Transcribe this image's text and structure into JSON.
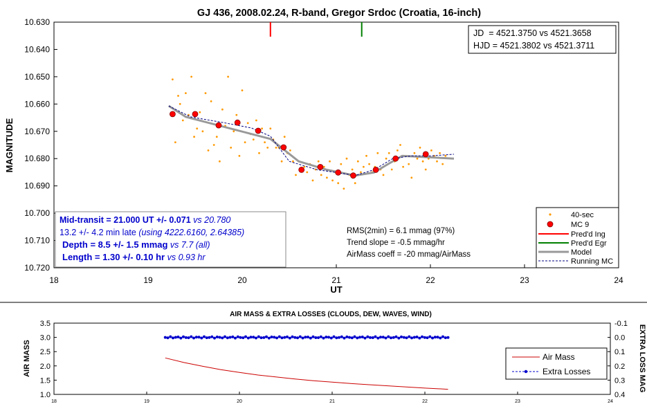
{
  "top_chart": {
    "title": "GJ 436, 2008.02.24, R-band, Gregor Srdoc (Croatia, 16-inch)",
    "ylabel": "MAGNITUDE",
    "xlabel": "UT",
    "jd_line": "JD  = 4521.3750 vs 4521.3658",
    "hjd_line": "HJD = 4521.3802 vs 4521.3711",
    "info": {
      "mid_bold": "Mid-transit = 21.000 UT +/- 0.071",
      "mid_vs": " vs 20.780",
      "late": "13.2 +/- 4.2 min late ",
      "late_italic": "(using 4222.6160, 2.64385)",
      "depth_bold": "Depth = 8.5 +/- 1.5 mmag",
      "depth_vs": " vs 7.7 (all)",
      "length_bold": "Length = 1.30 +/- 0.10 hr",
      "length_vs": " vs 0.93 hr"
    },
    "stats": {
      "rms": "RMS(2min) = 6.1 mmag (97%)",
      "trend": "Trend slope = -0.5 mmag/hr",
      "airmass": "AirMass coeff = -20 mmag/AirMass"
    },
    "legend": [
      "40-sec",
      "MC 9",
      "Pred'd Ing",
      "Pred'd Egr",
      "Model",
      "Running MC"
    ],
    "x_ticks": [
      "18",
      "19",
      "20",
      "21",
      "22",
      "23",
      "24"
    ],
    "y_ticks": [
      "10.630",
      "10.640",
      "10.650",
      "10.660",
      "10.670",
      "10.680",
      "10.690",
      "10.700",
      "10.710",
      "10.720"
    ]
  },
  "bottom_chart": {
    "title": "AIR MASS & EXTRA LOSSES (CLOUDS, DEW, WAVES, WIND)",
    "ylabel_left": "AIR MASS",
    "ylabel_right": "EXTRA LOSS MAG",
    "x_ticks": [
      "18",
      "19",
      "20",
      "21",
      "22",
      "23",
      "24"
    ],
    "y_left_ticks": [
      "3.5",
      "3.0",
      "2.5",
      "2.0",
      "1.5",
      "1.0"
    ],
    "y_right_ticks": [
      "-0.1",
      "0.0",
      "0.1",
      "0.2",
      "0.3",
      "0.4"
    ],
    "legend": [
      "Air Mass",
      "Extra Losses"
    ]
  },
  "colors": {
    "raw_points": "#ff9900",
    "mc_points": "#ff0000",
    "ingress": "#ff0000",
    "egress": "#008000",
    "model": "#999999",
    "running_mc": "#000080",
    "text_blue": "#0000cc",
    "airmass_line": "#cc0000",
    "extra_losses": "#0000cc"
  },
  "chart_data": [
    {
      "type": "scatter",
      "title": "GJ 436, 2008.02.24, R-band, Gregor Srdoc (Croatia, 16-inch)",
      "xlabel": "UT",
      "ylabel": "MAGNITUDE",
      "xlim": [
        18,
        24
      ],
      "ylim": [
        10.63,
        10.72
      ],
      "y_inverted": true,
      "legend_position": "bottom-right",
      "vertical_markers": [
        {
          "name": "Pred'd Ing",
          "x": 20.3
        },
        {
          "name": "Pred'd Egr",
          "x": 21.27
        }
      ],
      "series": [
        {
          "name": "40-sec",
          "x": [
            19.26,
            19.29,
            19.32,
            19.34,
            19.37,
            19.4,
            19.43,
            19.46,
            19.49,
            19.52,
            19.55,
            19.58,
            19.61,
            19.64,
            19.67,
            19.7,
            19.73,
            19.76,
            19.79,
            19.82,
            19.85,
            19.88,
            19.91,
            19.94,
            19.97,
            20.0,
            20.03,
            20.06,
            20.09,
            20.12,
            20.15,
            20.18,
            20.21,
            20.24,
            20.27,
            20.3,
            20.33,
            20.36,
            20.39,
            20.42,
            20.45,
            20.48,
            20.51,
            20.54,
            20.57,
            20.6,
            20.63,
            20.66,
            20.69,
            20.72,
            20.75,
            20.78,
            20.81,
            20.84,
            20.87,
            20.9,
            20.93,
            20.96,
            20.99,
            21.02,
            21.05,
            21.08,
            21.11,
            21.14,
            21.17,
            21.2,
            21.23,
            21.26,
            21.29,
            21.32,
            21.35,
            21.38,
            21.41,
            21.44,
            21.47,
            21.5,
            21.53,
            21.56,
            21.59,
            21.62,
            21.65,
            21.68,
            21.71,
            21.74,
            21.77,
            21.8,
            21.83,
            21.86,
            21.89,
            21.92,
            21.95,
            21.98,
            22.01,
            22.04,
            22.07,
            22.1,
            22.13,
            22.16
          ],
          "y": [
            10.651,
            10.674,
            10.657,
            10.66,
            10.666,
            10.656,
            10.664,
            10.65,
            10.672,
            10.669,
            10.663,
            10.67,
            10.656,
            10.677,
            10.659,
            10.675,
            10.672,
            10.681,
            10.662,
            10.668,
            10.65,
            10.676,
            10.67,
            10.664,
            10.679,
            10.655,
            10.674,
            10.667,
            10.671,
            10.673,
            10.666,
            10.678,
            10.669,
            10.674,
            10.676,
            10.669,
            10.673,
            10.676,
            10.676,
            10.681,
            10.672,
            10.678,
            10.677,
            10.681,
            10.686,
            10.681,
            10.684,
            10.683,
            10.685,
            10.682,
            10.688,
            10.684,
            10.681,
            10.686,
            10.683,
            10.687,
            10.681,
            10.688,
            10.685,
            10.689,
            10.682,
            10.691,
            10.68,
            10.686,
            10.684,
            10.689,
            10.681,
            10.685,
            10.683,
            10.679,
            10.682,
            10.685,
            10.683,
            10.678,
            10.684,
            10.686,
            10.68,
            10.678,
            10.684,
            10.681,
            10.677,
            10.675,
            10.683,
            10.679,
            10.682,
            10.687,
            10.678,
            10.68,
            10.676,
            10.681,
            10.684,
            10.68,
            10.677,
            10.679,
            10.681,
            10.678,
            10.682,
            10.679
          ]
        },
        {
          "name": "MC 9",
          "x": [
            19.26,
            19.5,
            19.75,
            19.95,
            20.17,
            20.44,
            20.63,
            20.83,
            21.02,
            21.18,
            21.42,
            21.63,
            21.95
          ],
          "y": [
            10.6637,
            10.6637,
            10.6678,
            10.6668,
            10.6698,
            10.6759,
            10.6841,
            10.6831,
            10.6851,
            10.6862,
            10.6841,
            10.68,
            10.6784
          ]
        },
        {
          "name": "Model",
          "x": [
            19.22,
            19.4,
            20.3,
            20.6,
            20.9,
            21.2,
            21.4,
            21.55,
            21.7,
            22.25
          ],
          "y": [
            10.6607,
            10.6647,
            10.6728,
            10.681,
            10.6841,
            10.6862,
            10.6851,
            10.682,
            10.679,
            10.68
          ]
        },
        {
          "name": "Running MC",
          "x": [
            19.22,
            19.45,
            19.8,
            20.1,
            20.3,
            20.5,
            20.8,
            21.0,
            21.2,
            21.4,
            21.6,
            21.8,
            22.0,
            22.25
          ],
          "y": [
            10.6607,
            10.6647,
            10.6668,
            10.6688,
            10.6718,
            10.681,
            10.6841,
            10.6851,
            10.6862,
            10.6841,
            10.68,
            10.679,
            10.679,
            10.6784
          ]
        }
      ]
    },
    {
      "type": "line",
      "title": "AIR MASS & EXTRA LOSSES (CLOUDS, DEW, WAVES, WIND)",
      "xlabel": "",
      "ylabel": "AIR MASS",
      "ylabel_right": "EXTRA LOSS MAG",
      "xlim": [
        18,
        24
      ],
      "ylim": [
        1.0,
        3.5
      ],
      "ylim_right": [
        -0.1,
        0.4
      ],
      "legend_position": "bottom-right",
      "series": [
        {
          "name": "Air Mass",
          "axis": "left",
          "x": [
            19.2,
            19.4,
            19.6,
            19.8,
            20.0,
            20.2,
            20.4,
            20.6,
            20.8,
            21.0,
            21.2,
            21.4,
            21.6,
            21.8,
            22.0,
            22.2,
            22.25
          ],
          "y": [
            2.28,
            2.12,
            1.99,
            1.87,
            1.77,
            1.68,
            1.61,
            1.54,
            1.48,
            1.43,
            1.38,
            1.34,
            1.3,
            1.26,
            1.22,
            1.19,
            1.18
          ]
        },
        {
          "name": "Extra Losses",
          "axis": "right",
          "x_start": 19.2,
          "x_end": 22.25,
          "count": 110,
          "y_value": 0.0,
          "y_jitter": 0.005
        }
      ]
    }
  ]
}
